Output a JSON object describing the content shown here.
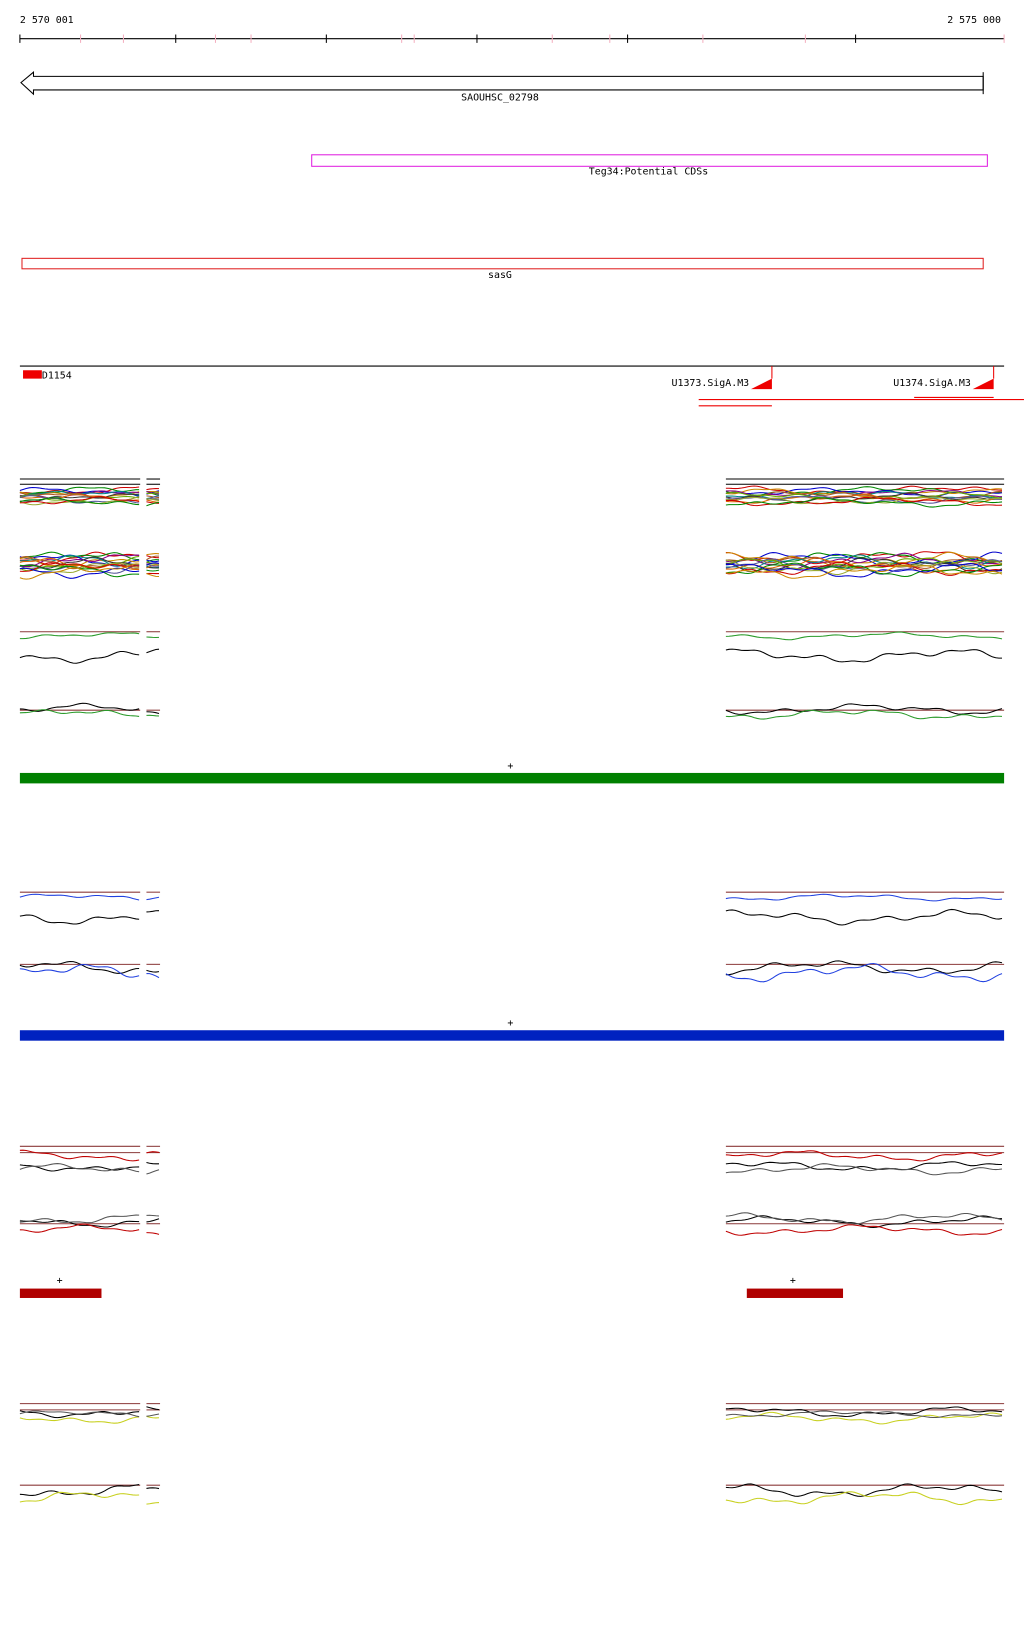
{
  "ruler": {
    "start": "2 570 001",
    "end": "2 575 000"
  },
  "features": [
    {
      "label": "SAOUHSC_02798"
    },
    {
      "label": "Teg34:Potential CDSs"
    },
    {
      "label": "sasG"
    }
  ],
  "promoters": {
    "left": "D1154",
    "sites": [
      "U1373.SigA.M3",
      "U1374.SigA.M3"
    ]
  },
  "strands": [
    "+",
    "+",
    "+",
    "+"
  ]
}
